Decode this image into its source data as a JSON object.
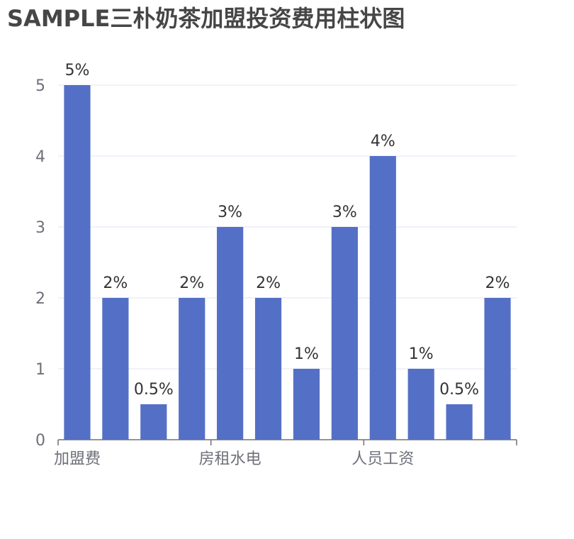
{
  "chart_data": {
    "type": "bar",
    "title": "SAMPLE三朴奶茶加盟投资费用柱状图",
    "xlabel": "",
    "ylabel": "",
    "ylim": [
      0,
      5
    ],
    "y_ticks": [
      0,
      1,
      2,
      3,
      4,
      5
    ],
    "grid": true,
    "categories": [
      "加盟费",
      "",
      "",
      "",
      "房租水电",
      "",
      "",
      "",
      "人员工资",
      "",
      "",
      ""
    ],
    "values": [
      5,
      2,
      0.5,
      2,
      3,
      2,
      1,
      3,
      4,
      1,
      0.5,
      2
    ],
    "data_labels": [
      "5%",
      "2%",
      "0.5%",
      "2%",
      "3%",
      "2%",
      "1%",
      "3%",
      "4%",
      "1%",
      "0.5%",
      "2%"
    ],
    "bar_color": "#5470c6",
    "grid_color": "#e0e6f1",
    "axis_color": "#6e7079"
  }
}
